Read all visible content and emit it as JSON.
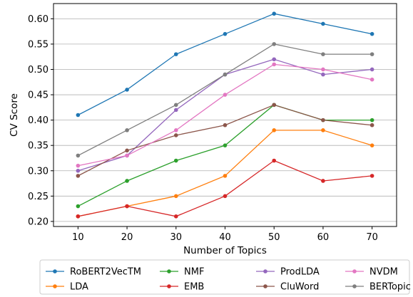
{
  "chart_data": {
    "type": "line",
    "xlabel": "Number of Topics",
    "ylabel": "CV Score",
    "x": [
      10,
      20,
      30,
      40,
      50,
      60,
      70
    ],
    "xlim": [
      5,
      75
    ],
    "ylim": [
      0.19,
      0.63
    ],
    "yticks": [
      0.2,
      0.25,
      0.3,
      0.35,
      0.4,
      0.45,
      0.5,
      0.55,
      0.6
    ],
    "ytick_labels": [
      "0.20",
      "0.25",
      "0.30",
      "0.35",
      "0.40",
      "0.45",
      "0.50",
      "0.55",
      "0.60"
    ],
    "xtick_labels": [
      "10",
      "20",
      "30",
      "40",
      "50",
      "60",
      "70"
    ],
    "grid": "horizontal",
    "legend_position": "bottom-outside",
    "series": [
      {
        "name": "RoBERT2VecTM",
        "color": "#1f77b4",
        "values": [
          0.41,
          0.46,
          0.53,
          0.57,
          0.61,
          0.59,
          0.57
        ]
      },
      {
        "name": "LDA",
        "color": "#ff7f0e",
        "values": [
          0.21,
          0.23,
          0.25,
          0.29,
          0.38,
          0.38,
          0.35
        ]
      },
      {
        "name": "NMF",
        "color": "#2ca02c",
        "values": [
          0.23,
          0.28,
          0.32,
          0.35,
          0.43,
          0.4,
          0.4
        ]
      },
      {
        "name": "EMB",
        "color": "#d62728",
        "values": [
          0.21,
          0.23,
          0.21,
          0.25,
          0.32,
          0.28,
          0.29
        ]
      },
      {
        "name": "ProdLDA",
        "color": "#9467bd",
        "values": [
          0.3,
          0.33,
          0.42,
          0.49,
          0.52,
          0.49,
          0.5
        ]
      },
      {
        "name": "CluWord",
        "color": "#8c564b",
        "values": [
          0.29,
          0.34,
          0.37,
          0.39,
          0.43,
          0.4,
          0.39
        ]
      },
      {
        "name": "NVDM",
        "color": "#e377c2",
        "values": [
          0.31,
          0.33,
          0.38,
          0.45,
          0.51,
          0.5,
          0.48
        ]
      },
      {
        "name": "BERTopic",
        "color": "#7f7f7f",
        "values": [
          0.33,
          0.38,
          0.43,
          0.49,
          0.55,
          0.53,
          0.53
        ]
      }
    ]
  }
}
